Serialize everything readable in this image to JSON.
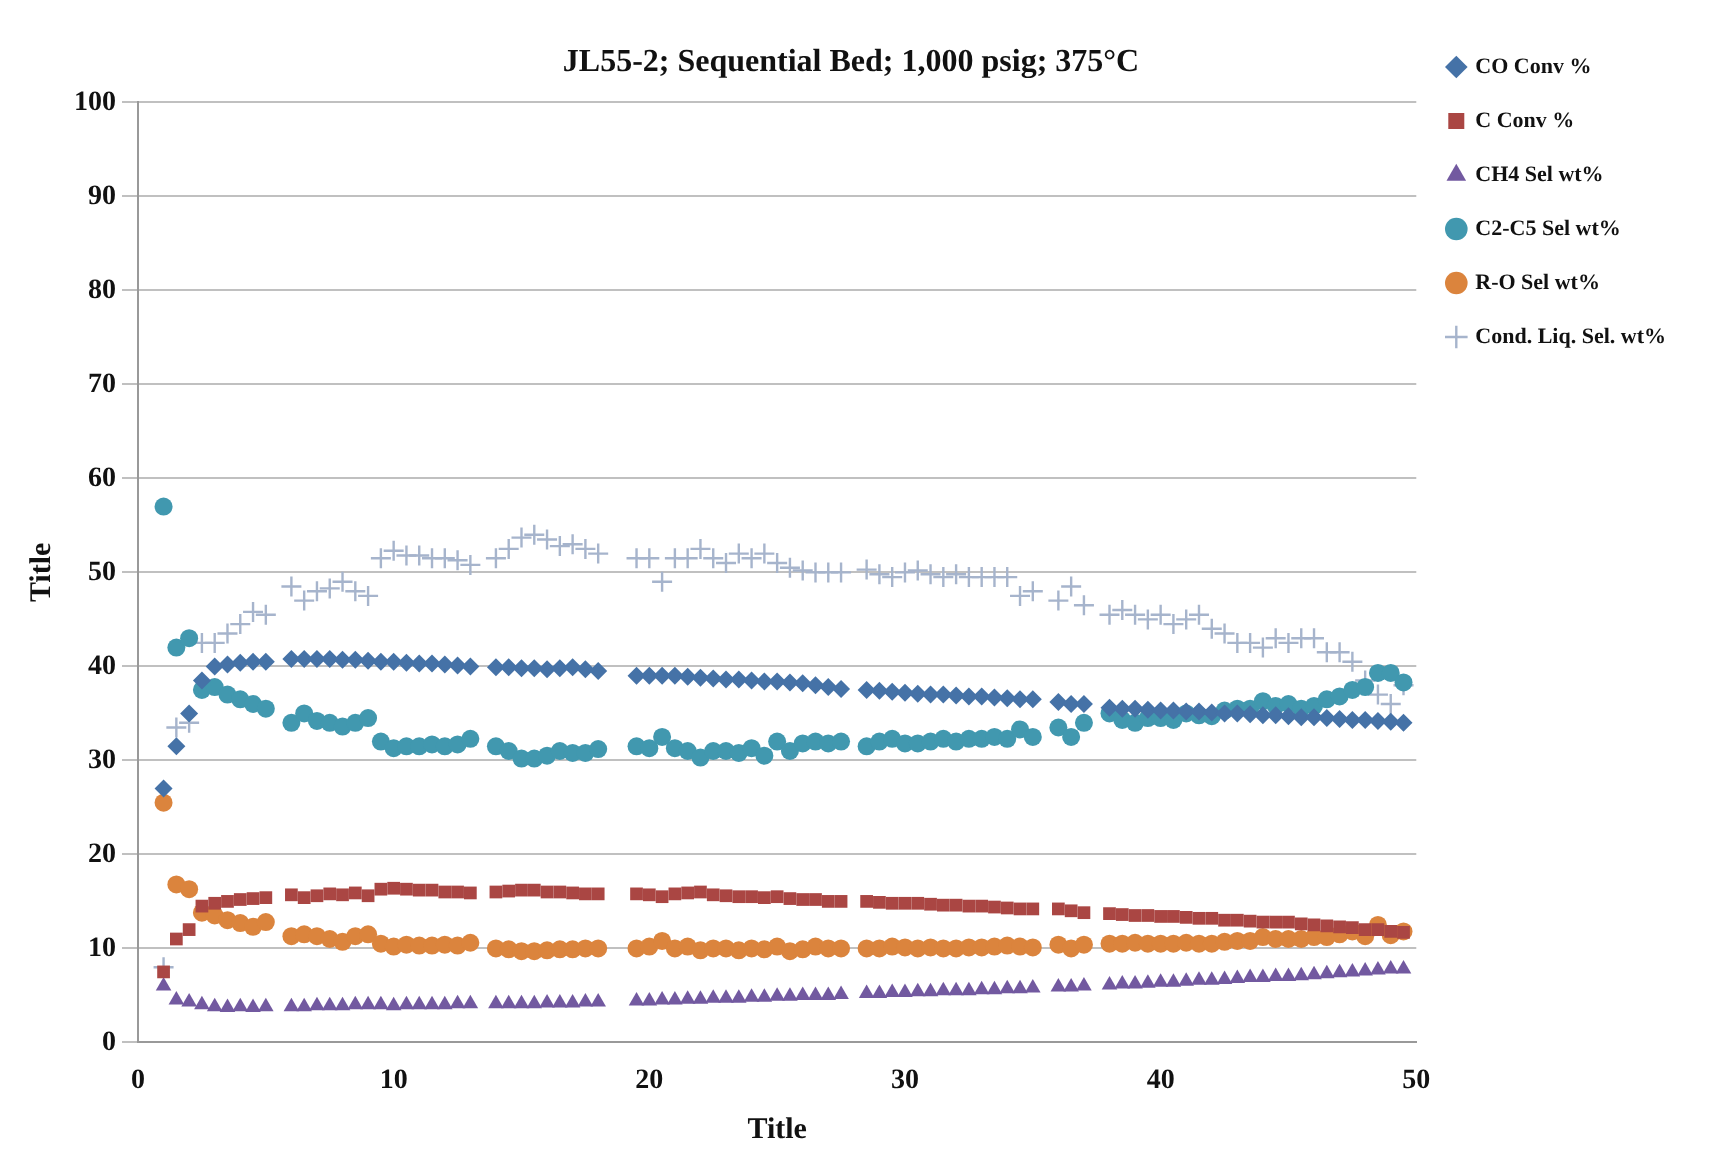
{
  "chart_data": {
    "type": "scatter",
    "title": "JL55-2; Sequential Bed; 1,000 psig; 375°C",
    "xlabel": "Title",
    "ylabel": "Title",
    "x": [
      1,
      1.5,
      2,
      2.5,
      3,
      3.5,
      4,
      4.5,
      5,
      6,
      6.5,
      7,
      7.5,
      8,
      8.5,
      9,
      9.5,
      10,
      10.5,
      11,
      11.5,
      12,
      12.5,
      13,
      14,
      14.5,
      15,
      15.5,
      16,
      16.5,
      17,
      17.5,
      18,
      19.5,
      20,
      20.5,
      21,
      21.5,
      22,
      22.5,
      23,
      23.5,
      24,
      24.5,
      25,
      25.5,
      26,
      26.5,
      27,
      27.5,
      28.5,
      29,
      29.5,
      30,
      30.5,
      31,
      31.5,
      32,
      32.5,
      33,
      33.5,
      34,
      34.5,
      35,
      36,
      36.5,
      37,
      38,
      38.5,
      39,
      39.5,
      40,
      40.5,
      41,
      41.5,
      42,
      42.5,
      43,
      43.5,
      44,
      44.5,
      45,
      45.5,
      46,
      46.5,
      47,
      47.5,
      48,
      48.5,
      49,
      49.5
    ],
    "series": [
      {
        "name": "CO Conv %",
        "color": "#4572a7",
        "marker": "diamond",
        "values": [
          27,
          31.5,
          35,
          38.5,
          40,
          40.2,
          40.4,
          40.5,
          40.5,
          40.8,
          40.8,
          40.8,
          40.8,
          40.7,
          40.7,
          40.6,
          40.5,
          40.5,
          40.4,
          40.3,
          40.3,
          40.2,
          40.1,
          40.0,
          39.9,
          39.9,
          39.8,
          39.8,
          39.7,
          39.8,
          39.9,
          39.7,
          39.5,
          39.0,
          39.0,
          39.0,
          39.0,
          38.9,
          38.8,
          38.7,
          38.6,
          38.6,
          38.5,
          38.4,
          38.4,
          38.3,
          38.2,
          38.0,
          37.8,
          37.6,
          37.5,
          37.4,
          37.3,
          37.2,
          37.1,
          37.0,
          37.0,
          36.9,
          36.8,
          36.8,
          36.7,
          36.6,
          36.5,
          36.5,
          36.2,
          36.0,
          36.0,
          35.6,
          35.5,
          35.5,
          35.4,
          35.3,
          35.3,
          35.2,
          35.2,
          35.1,
          35.0,
          35.0,
          34.9,
          34.8,
          34.8,
          34.7,
          34.6,
          34.6,
          34.5,
          34.4,
          34.3,
          34.3,
          34.2,
          34.1,
          34.0
        ]
      },
      {
        "name": "C Conv %",
        "color": "#aa4643",
        "marker": "square",
        "values": [
          7.5,
          11,
          12,
          14.5,
          14.8,
          15,
          15.2,
          15.3,
          15.4,
          15.7,
          15.4,
          15.6,
          15.8,
          15.7,
          15.9,
          15.6,
          16.3,
          16.4,
          16.3,
          16.2,
          16.2,
          16.0,
          16.0,
          15.9,
          16.0,
          16.1,
          16.2,
          16.2,
          16.0,
          16.0,
          15.9,
          15.8,
          15.8,
          15.8,
          15.7,
          15.5,
          15.8,
          15.9,
          16.0,
          15.7,
          15.6,
          15.5,
          15.5,
          15.4,
          15.5,
          15.3,
          15.2,
          15.2,
          15.0,
          15.0,
          15.0,
          14.9,
          14.8,
          14.8,
          14.8,
          14.7,
          14.6,
          14.6,
          14.5,
          14.5,
          14.4,
          14.3,
          14.2,
          14.2,
          14.2,
          14.0,
          13.8,
          13.7,
          13.6,
          13.5,
          13.5,
          13.4,
          13.4,
          13.3,
          13.2,
          13.2,
          13.0,
          13.0,
          12.9,
          12.8,
          12.8,
          12.8,
          12.6,
          12.5,
          12.4,
          12.3,
          12.2,
          12.0,
          12.0,
          11.8,
          11.7
        ]
      },
      {
        "name": "CH4 Sel wt%",
        "color": "#7259a0",
        "marker": "triangle",
        "values": [
          6,
          4.5,
          4.3,
          4,
          3.8,
          3.7,
          3.8,
          3.7,
          3.8,
          3.8,
          3.8,
          3.9,
          3.9,
          3.9,
          4.0,
          4.0,
          4.0,
          3.9,
          4.0,
          4.0,
          4.0,
          4.0,
          4.1,
          4.1,
          4.1,
          4.1,
          4.1,
          4.1,
          4.2,
          4.2,
          4.2,
          4.3,
          4.3,
          4.4,
          4.4,
          4.5,
          4.5,
          4.6,
          4.6,
          4.7,
          4.7,
          4.7,
          4.8,
          4.8,
          4.9,
          4.9,
          5.0,
          5.0,
          5.0,
          5.1,
          5.2,
          5.2,
          5.3,
          5.3,
          5.4,
          5.4,
          5.5,
          5.5,
          5.5,
          5.6,
          5.6,
          5.7,
          5.7,
          5.8,
          5.9,
          5.9,
          6.0,
          6.1,
          6.2,
          6.2,
          6.3,
          6.4,
          6.4,
          6.5,
          6.6,
          6.6,
          6.7,
          6.8,
          6.9,
          6.9,
          7.0,
          7.0,
          7.1,
          7.2,
          7.3,
          7.4,
          7.5,
          7.6,
          7.7,
          7.8,
          7.8
        ]
      },
      {
        "name": "C2-C5 Sel wt%",
        "color": "#4198af",
        "marker": "circle",
        "values": [
          57,
          42,
          43,
          37.5,
          37.8,
          37,
          36.5,
          36,
          35.5,
          34,
          35,
          34.2,
          34,
          33.6,
          34,
          34.5,
          32,
          31.3,
          31.5,
          31.5,
          31.7,
          31.5,
          31.7,
          32.3,
          31.5,
          31,
          30.2,
          30.2,
          30.5,
          31,
          30.8,
          30.8,
          31.2,
          31.5,
          31.3,
          32.5,
          31.3,
          31,
          30.3,
          31,
          31,
          30.8,
          31.3,
          30.5,
          32,
          31,
          31.8,
          32,
          31.8,
          32,
          31.5,
          32,
          32.3,
          31.8,
          31.8,
          32,
          32.3,
          32,
          32.3,
          32.3,
          32.5,
          32.3,
          33.3,
          32.5,
          33.5,
          32.5,
          34,
          35,
          34.3,
          34,
          34.5,
          34.5,
          34.3,
          35,
          34.8,
          34.7,
          35.3,
          35.5,
          35.5,
          36.3,
          35.8,
          36,
          35.5,
          35.8,
          36.5,
          36.8,
          37.5,
          37.8,
          39.3,
          39.3,
          38.3
        ]
      },
      {
        "name": "R-O Sel wt%",
        "color": "#db843d",
        "marker": "circle",
        "values": [
          25.5,
          16.8,
          16.3,
          13.8,
          13.5,
          13,
          12.7,
          12.3,
          12.8,
          11.3,
          11.5,
          11.3,
          11,
          10.7,
          11.3,
          11.5,
          10.5,
          10.2,
          10.4,
          10.3,
          10.3,
          10.4,
          10.3,
          10.6,
          10,
          9.9,
          9.7,
          9.7,
          9.8,
          9.9,
          9.9,
          10,
          10,
          10,
          10.2,
          10.8,
          10,
          10.2,
          9.8,
          10,
          10,
          9.8,
          10,
          9.9,
          10.2,
          9.7,
          9.9,
          10.2,
          10,
          10,
          10,
          10,
          10.2,
          10.1,
          10,
          10.1,
          10,
          10,
          10.1,
          10.1,
          10.2,
          10.3,
          10.2,
          10.1,
          10.4,
          10,
          10.4,
          10.5,
          10.5,
          10.6,
          10.5,
          10.5,
          10.5,
          10.6,
          10.5,
          10.5,
          10.7,
          10.8,
          10.8,
          11.2,
          11,
          11,
          11,
          11.2,
          11.2,
          11.5,
          11.8,
          11.3,
          12.5,
          11.4,
          11.8
        ]
      },
      {
        "name": "Cond. Liq. Sel. wt%",
        "color": "#a6b4cc",
        "marker": "cross",
        "values": [
          8,
          33.5,
          34,
          42.5,
          42.5,
          43.5,
          44.5,
          45.8,
          45.5,
          48.5,
          47,
          48,
          48.3,
          49,
          48,
          47.5,
          51.5,
          52.3,
          51.8,
          51.8,
          51.5,
          51.5,
          51.3,
          50.8,
          51.5,
          52.5,
          53.7,
          54,
          53.5,
          52.8,
          53,
          52.5,
          52,
          51.5,
          51.5,
          49,
          51.5,
          51.5,
          52.5,
          51.5,
          51,
          52,
          51.5,
          52,
          51,
          50.5,
          50.2,
          50,
          50,
          50,
          50.3,
          49.8,
          49.5,
          50,
          50.2,
          49.8,
          49.5,
          49.8,
          49.5,
          49.5,
          49.5,
          49.5,
          47.5,
          48,
          47,
          48.5,
          46.5,
          45.5,
          46,
          45.5,
          45,
          45.5,
          44.5,
          45,
          45.5,
          44,
          43.5,
          42.5,
          42.5,
          42,
          43,
          42.5,
          43,
          43,
          41.5,
          41.5,
          40.5,
          38.5,
          37,
          36,
          38
        ]
      }
    ],
    "xlim": [
      0,
      50
    ],
    "xticks": [
      0,
      10,
      20,
      30,
      40,
      50
    ],
    "ylim": [
      0,
      100
    ],
    "yticks": [
      0,
      10,
      20,
      30,
      40,
      50,
      60,
      70,
      80,
      90,
      100
    ],
    "grid": "y",
    "legend": "top right"
  }
}
